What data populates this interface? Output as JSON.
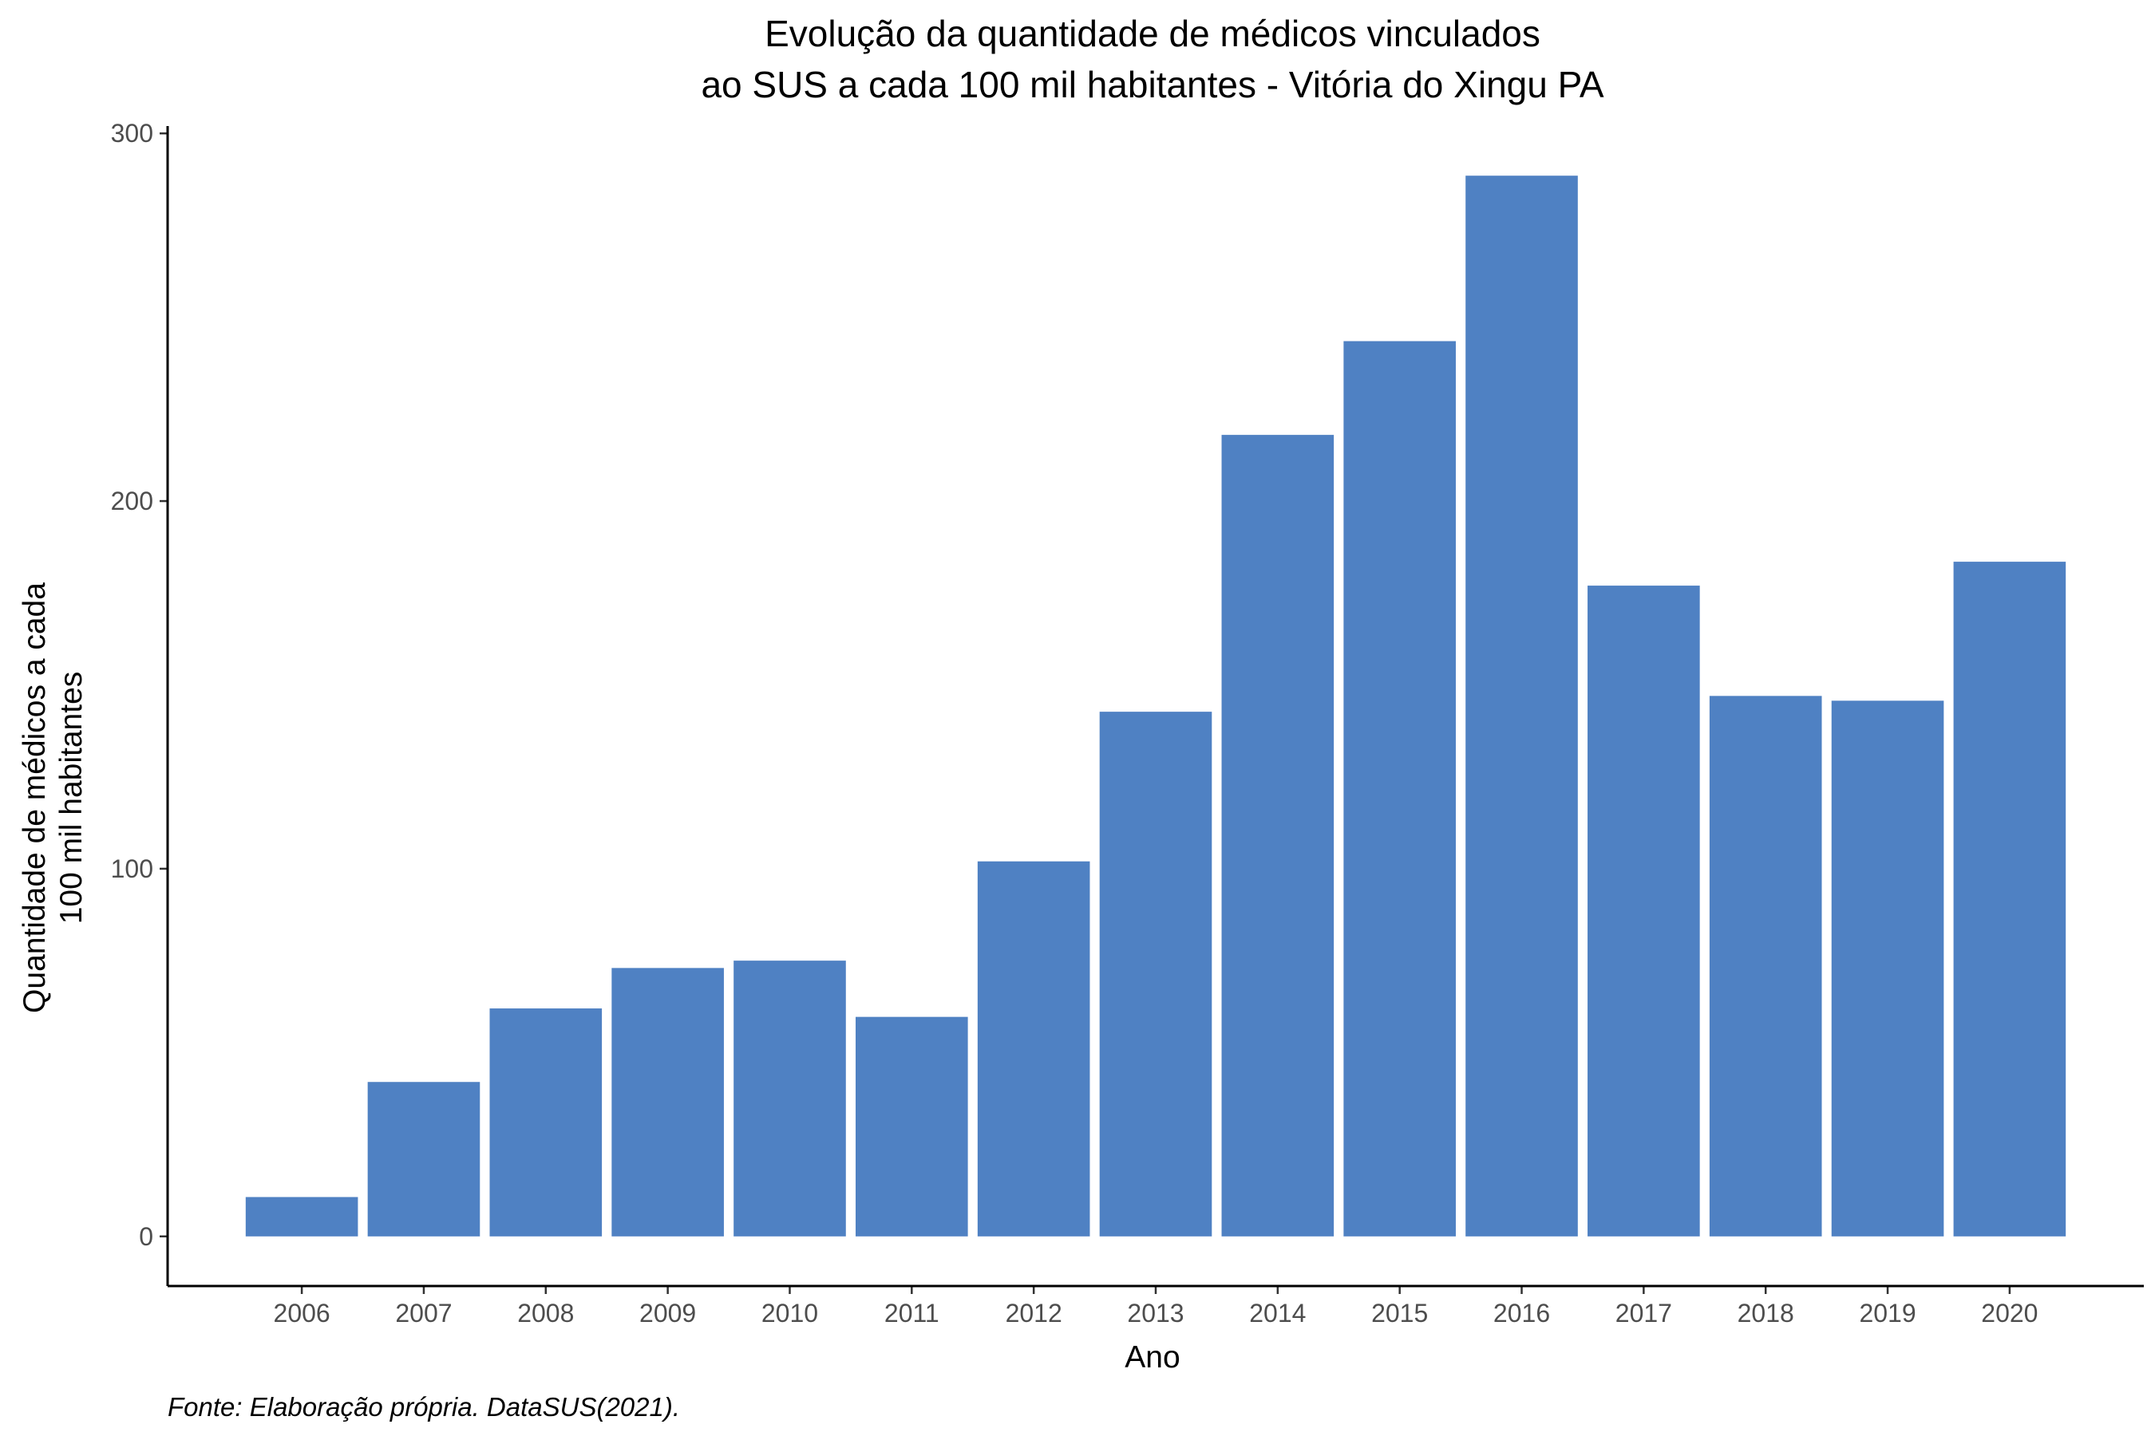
{
  "chart_data": {
    "type": "bar",
    "title_lines": [
      "Evolução da quantidade de médicos vinculados",
      "ao SUS a cada 100 mil habitantes - Vitória do Xingu PA"
    ],
    "xlabel": "Ano",
    "ylabel_lines": [
      "Quantidade de médicos a cada",
      "100 mil habitantes"
    ],
    "caption": "Fonte: Elaboração própria. DataSUS(2021).",
    "categories": [
      "2006",
      "2007",
      "2008",
      "2009",
      "2010",
      "2011",
      "2012",
      "2013",
      "2014",
      "2015",
      "2016",
      "2017",
      "2018",
      "2019",
      "2020"
    ],
    "values": [
      10.7,
      42,
      62,
      73,
      75,
      59.7,
      102,
      142.7,
      218,
      243.5,
      288.5,
      177,
      147,
      145.7,
      183.5
    ],
    "ylim": [
      -13.5,
      302
    ],
    "yticks": [
      0,
      100,
      200,
      300
    ],
    "bar_color": "#4f81c3",
    "grid": false,
    "legend": "none"
  }
}
